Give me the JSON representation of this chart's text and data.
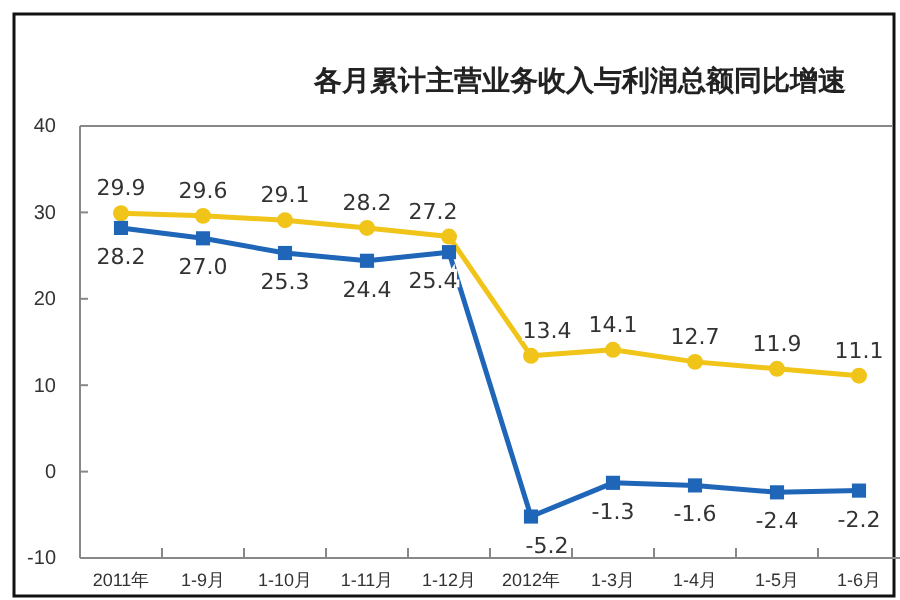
{
  "chart_data": {
    "type": "line",
    "title": "各月累计主营业务收入与利润总额同比增速",
    "categories": [
      "2011年",
      "1-9月",
      "1-10月",
      "1-11月",
      "1-12月",
      "2012年",
      "1-3月",
      "1-4月",
      "1-5月",
      "1-6月"
    ],
    "series": [
      {
        "color": "#f0c419",
        "marker": "circle",
        "values": [
          29.9,
          29.6,
          29.1,
          28.2,
          27.2,
          13.4,
          14.1,
          12.7,
          11.9,
          11.1
        ],
        "value_labels": [
          "29.9",
          "29.6",
          "29.1",
          "28.2",
          "27.2",
          "13.4",
          "14.1",
          "12.7",
          "11.9",
          "11.1"
        ]
      },
      {
        "color": "#1f66b8",
        "marker": "square",
        "values": [
          28.2,
          27.0,
          25.3,
          24.4,
          25.4,
          -5.2,
          -1.3,
          -1.6,
          -2.4,
          -2.2
        ],
        "value_labels": [
          "28.2",
          "27.0",
          "25.3",
          "24.4",
          "25.4",
          "-5.2",
          "-1.3",
          "-1.6",
          "-2.4",
          "-2.2"
        ]
      }
    ],
    "ylim": [
      -10,
      40
    ],
    "yticks": [
      -10,
      0,
      10,
      20,
      30,
      40
    ],
    "grid": false
  }
}
